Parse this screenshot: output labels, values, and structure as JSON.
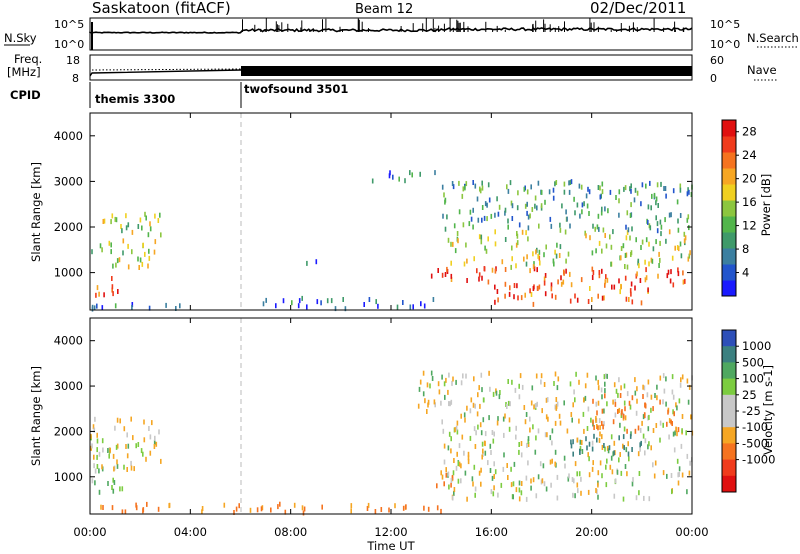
{
  "header": {
    "station": "Saskatoon (fitACF)",
    "beam": "Beam 12",
    "date": "02/Dec/2011"
  },
  "top_strip": {
    "left_label": "N.Sky",
    "right_label": "N.Search",
    "left_ticks": [
      "10^5",
      "10^0"
    ],
    "right_ticks": [
      "10^5",
      "10^0"
    ]
  },
  "freq_strip": {
    "left_label_1": "Freq.",
    "left_label_2": "[MHz]",
    "right_label": "Nave",
    "left_ticks": [
      "18",
      "8"
    ],
    "right_ticks": [
      "60",
      "0"
    ]
  },
  "cpid": {
    "label": "CPID",
    "segments": [
      "themis 3300",
      "twofsound 3501"
    ]
  },
  "chart_data": [
    {
      "type": "heatmap",
      "name": "power",
      "ylabel": "Slant Range [km]",
      "xlabel": "",
      "x_range_hours": [
        0,
        24
      ],
      "ylim": [
        180,
        4500
      ],
      "y_ticks": [
        1000,
        2000,
        3000,
        4000
      ],
      "colorbar": {
        "label": "Power [dB]",
        "range": [
          0,
          30
        ],
        "ticks": [
          4,
          8,
          12,
          16,
          20,
          24,
          28
        ],
        "colors": [
          "#1a1aff",
          "#2255cc",
          "#3b7fa0",
          "#3f9a6a",
          "#52b54b",
          "#8cc63f",
          "#f0d020",
          "#f6a623",
          "#f5731f",
          "#f03b1c",
          "#e01010"
        ]
      },
      "echo_regions": [
        {
          "t": [
            0.0,
            1.2
          ],
          "r": [
            500,
            900
          ],
          "power": 24
        },
        {
          "t": [
            0.0,
            2.6
          ],
          "r": [
            1100,
            1700
          ],
          "power": 16
        },
        {
          "t": [
            0.2,
            3.0
          ],
          "r": [
            1800,
            2300
          ],
          "power": 14
        },
        {
          "t": [
            0.0,
            6.0
          ],
          "r": [
            200,
            320
          ],
          "power": 6
        },
        {
          "t": [
            6.0,
            14.0
          ],
          "r": [
            200,
            450
          ],
          "power": 6
        },
        {
          "t": [
            8.0,
            9.5
          ],
          "r": [
            1150,
            1300
          ],
          "power": 6
        },
        {
          "t": [
            11.2,
            13.8
          ],
          "r": [
            3000,
            3200
          ],
          "power": 6
        },
        {
          "t": [
            13.5,
            24.0
          ],
          "r": [
            700,
            1100
          ],
          "power": 26
        },
        {
          "t": [
            14.2,
            24.0
          ],
          "r": [
            1100,
            1900
          ],
          "power": 16
        },
        {
          "t": [
            14.0,
            24.0
          ],
          "r": [
            1900,
            3000
          ],
          "power": 10
        },
        {
          "t": [
            16.0,
            22.5
          ],
          "r": [
            300,
            700
          ],
          "power": 24
        }
      ]
    },
    {
      "type": "heatmap",
      "name": "velocity",
      "ylabel": "Slant Range [km]",
      "xlabel": "Time UT",
      "x_ticks": [
        "00:00",
        "04:00",
        "08:00",
        "12:00",
        "16:00",
        "20:00",
        "00:00"
      ],
      "x_range_hours": [
        0,
        24
      ],
      "ylim": [
        180,
        4500
      ],
      "y_ticks": [
        1000,
        2000,
        3000,
        4000
      ],
      "colorbar": {
        "label": "Velocity [m s-1]",
        "ticks": [
          1000,
          500,
          100,
          25,
          -25,
          -100,
          -500,
          -1000
        ],
        "colors": [
          "#2d4fb8",
          "#3b8080",
          "#4fa860",
          "#7ccc40",
          "#c8c8c8",
          "#c8c8c8",
          "#f5a623",
          "#f5731f",
          "#f03b1c",
          "#e01010"
        ]
      },
      "echo_regions": [
        {
          "t": [
            0.0,
            1.4
          ],
          "r": [
            600,
            1000
          ],
          "velocity": 50
        },
        {
          "t": [
            0.0,
            2.8
          ],
          "r": [
            1100,
            2300
          ],
          "velocity": 0
        },
        {
          "t": [
            0.0,
            14.0
          ],
          "r": [
            200,
            400
          ],
          "velocity": -120
        },
        {
          "t": [
            13.5,
            14.5
          ],
          "r": [
            800,
            1100
          ],
          "velocity": -150
        },
        {
          "t": [
            14.0,
            24.0
          ],
          "r": [
            500,
            2300
          ],
          "velocity": 0
        },
        {
          "t": [
            13.0,
            24.0
          ],
          "r": [
            2300,
            3300
          ],
          "velocity": 0
        },
        {
          "t": [
            19.0,
            22.0
          ],
          "r": [
            1500,
            1900
          ],
          "velocity": 500
        },
        {
          "t": [
            20.0,
            23.5
          ],
          "r": [
            2000,
            2800
          ],
          "velocity": -150
        }
      ]
    }
  ]
}
